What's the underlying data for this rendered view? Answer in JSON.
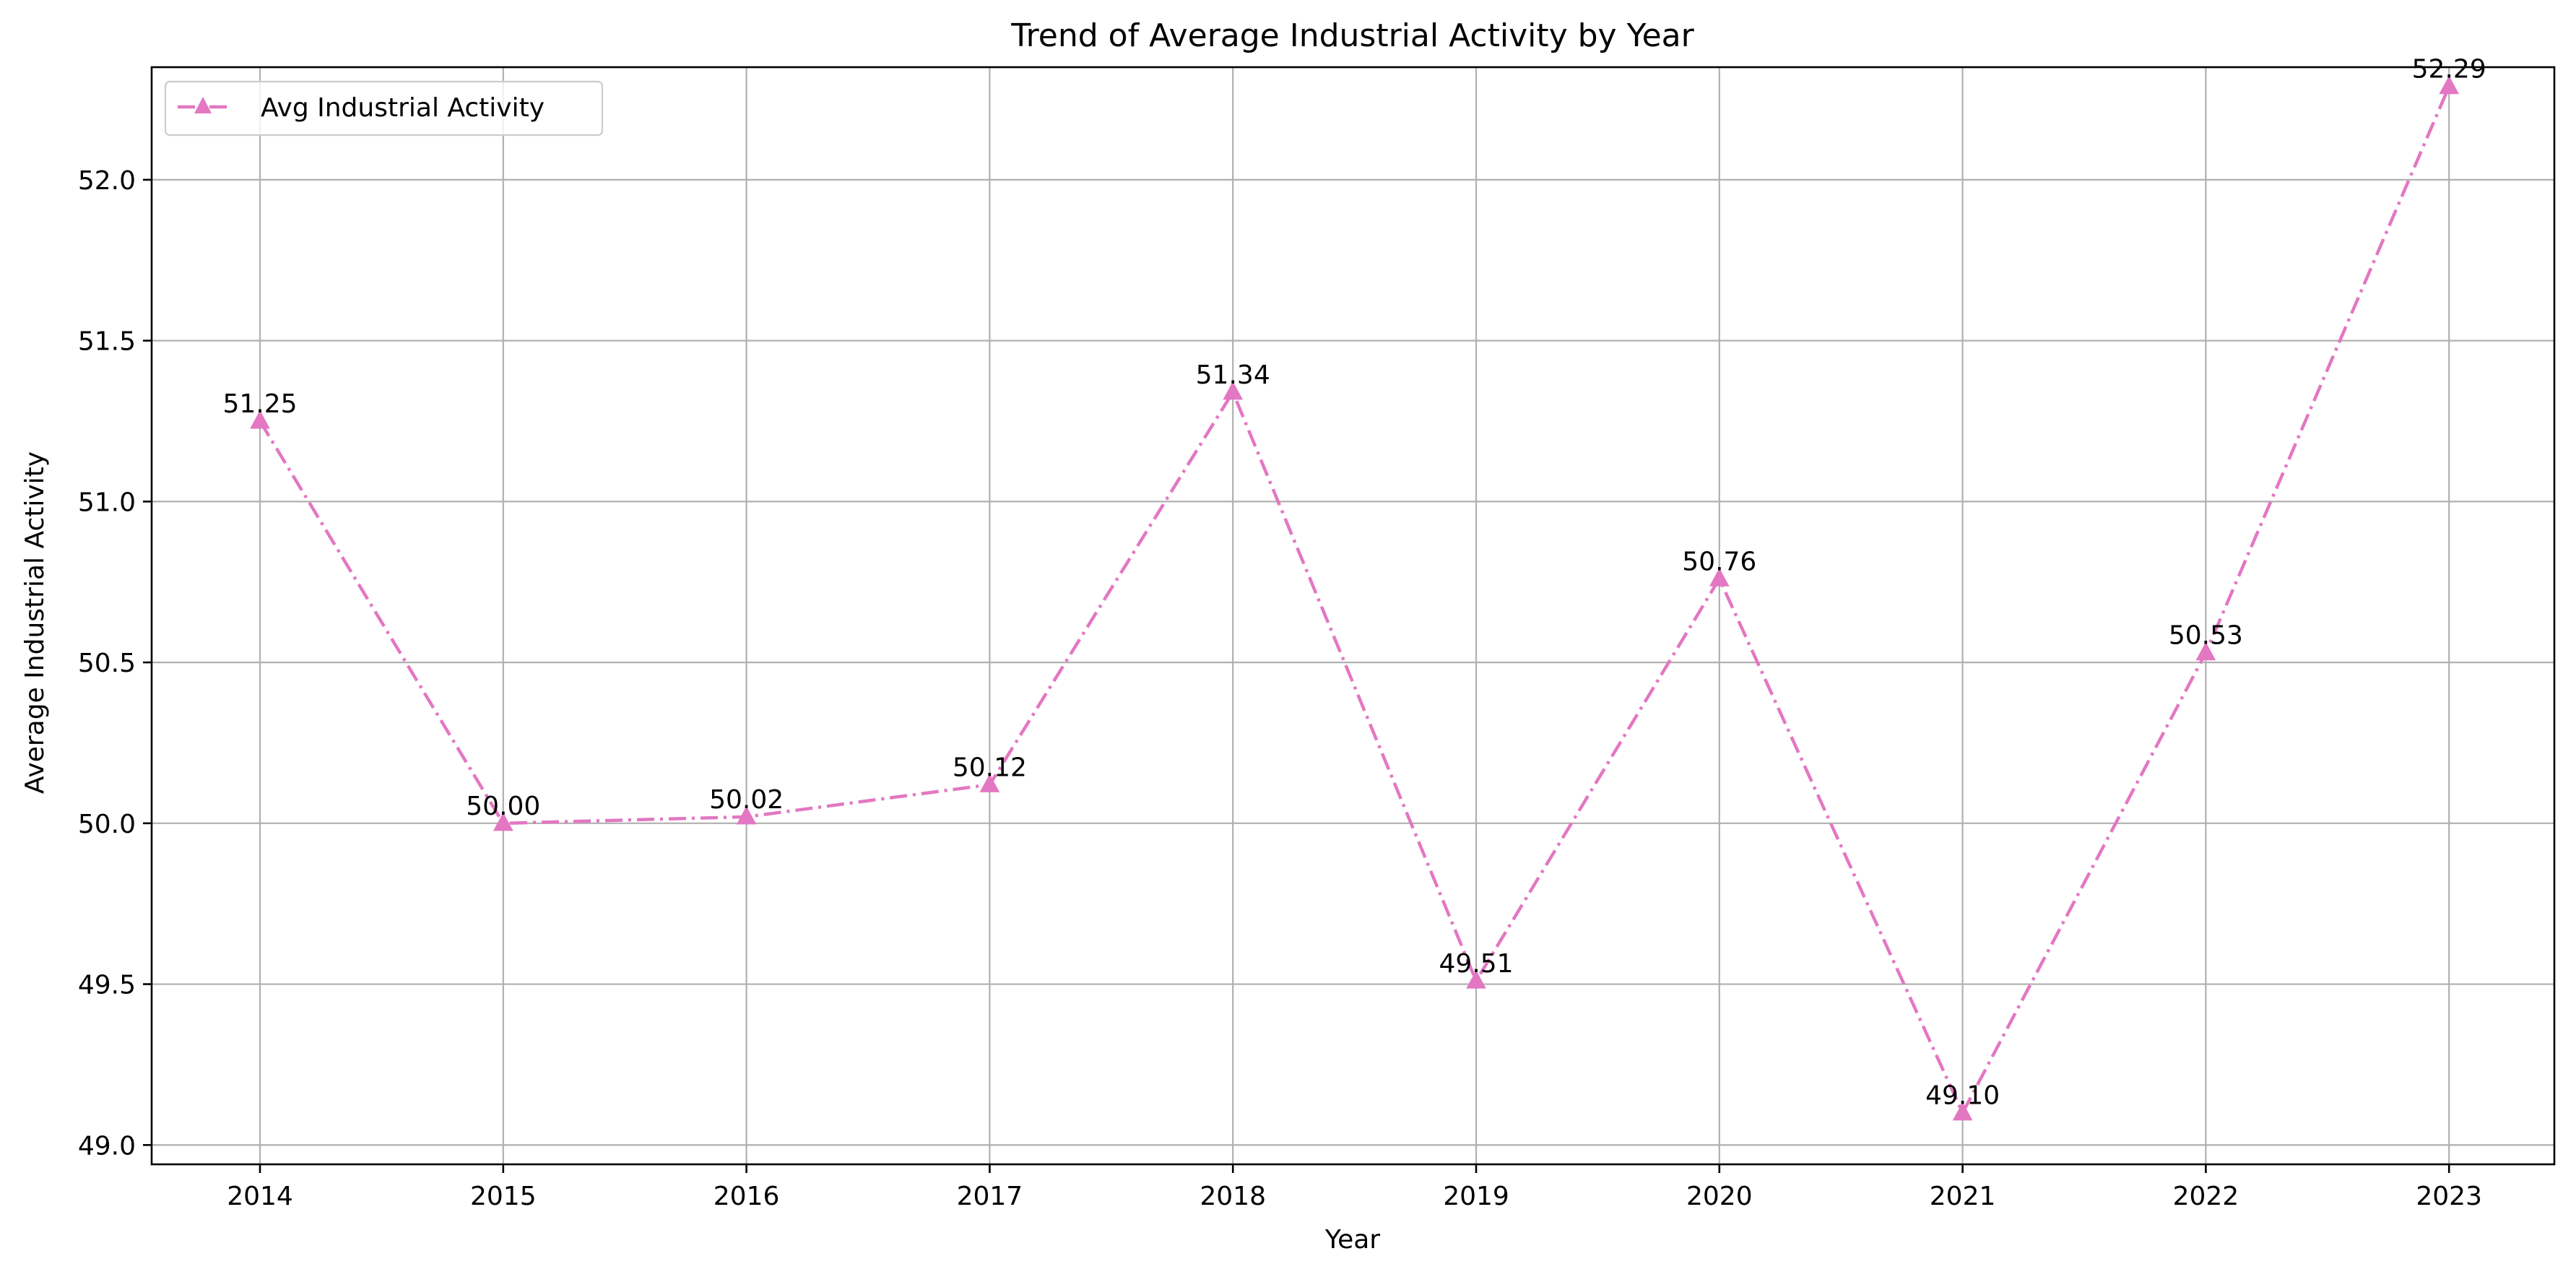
{
  "chart_data": {
    "type": "line",
    "title": "Trend of Average Industrial Activity by Year",
    "xlabel": "Year",
    "ylabel": "Average Industrial Activity",
    "categories": [
      "2014",
      "2015",
      "2016",
      "2017",
      "2018",
      "2019",
      "2020",
      "2021",
      "2022",
      "2023"
    ],
    "series": [
      {
        "name": "Avg Industrial Activity",
        "values": [
          51.25,
          50.0,
          50.02,
          50.12,
          51.34,
          49.51,
          50.76,
          49.1,
          50.53,
          52.29
        ],
        "labels": [
          "51.25",
          "50.00",
          "50.02",
          "50.12",
          "51.34",
          "49.51",
          "50.76",
          "49.10",
          "50.53",
          "52.29"
        ],
        "color": "#e377c2",
        "marker": "triangle-up",
        "line_style": "dash-dot"
      }
    ],
    "yticks": [
      49.0,
      49.5,
      50.0,
      50.5,
      51.0,
      51.5,
      52.0
    ],
    "ytick_labels": [
      "49.0",
      "49.5",
      "50.0",
      "50.5",
      "51.0",
      "51.5",
      "52.0"
    ],
    "ylim": [
      48.94,
      52.35
    ],
    "grid": true,
    "legend_position": "upper-left"
  }
}
